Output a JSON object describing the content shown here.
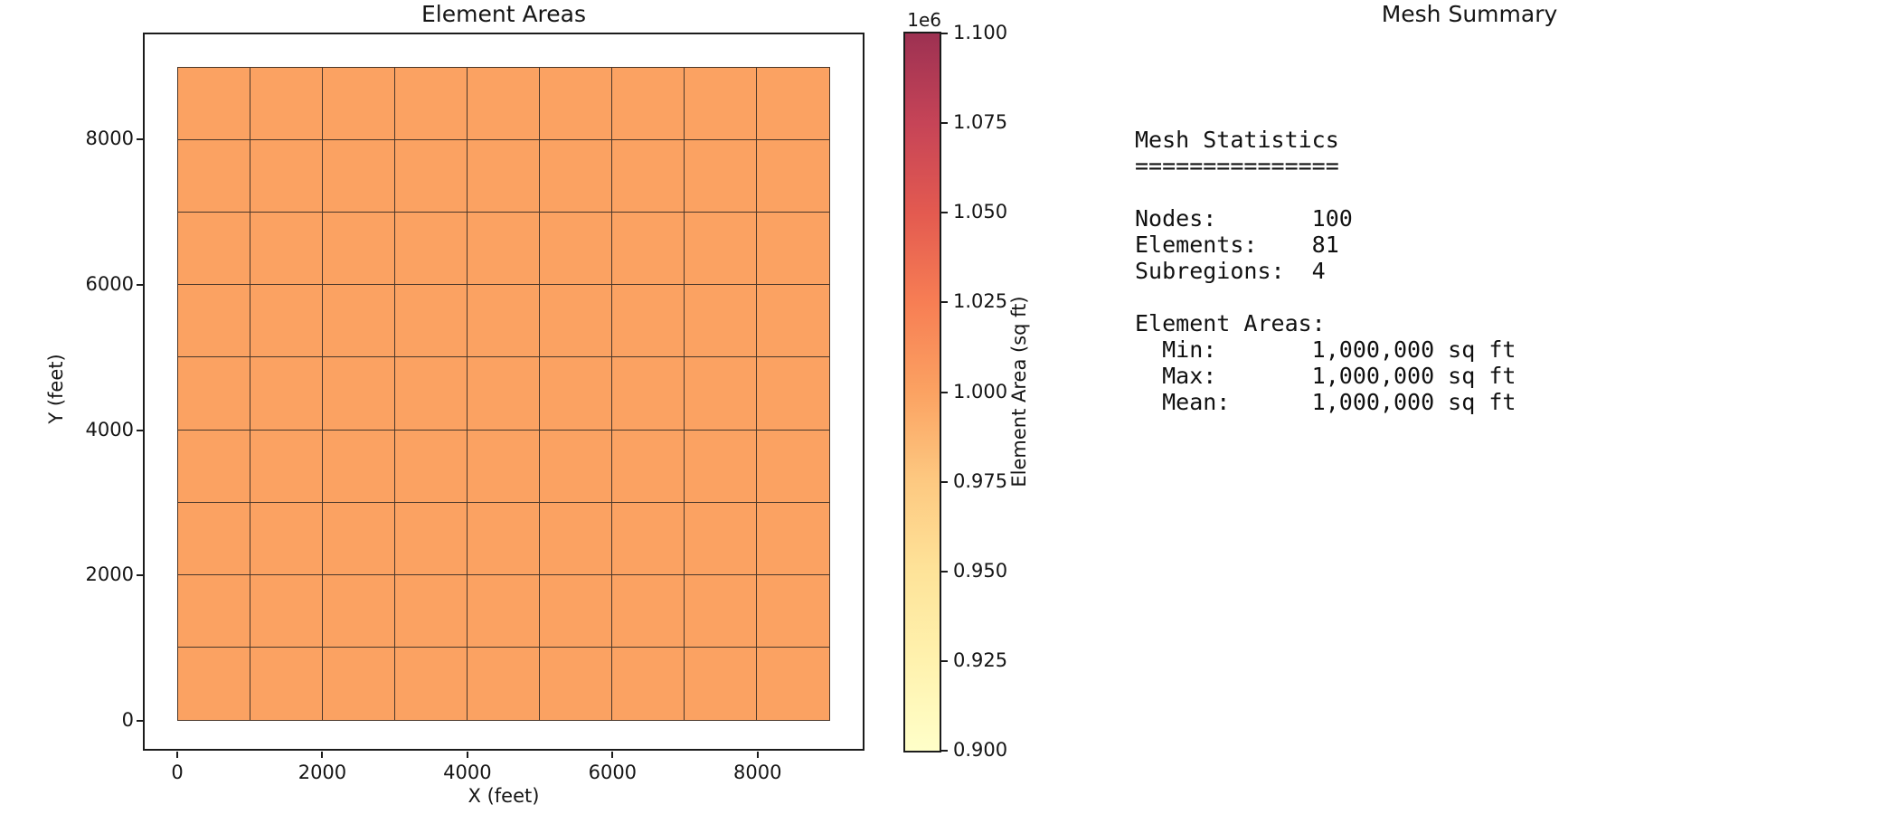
{
  "figure": {
    "background": "#ffffff",
    "text_color": "#151515"
  },
  "chart_data": {
    "type": "heatmap",
    "title": "Element Areas",
    "xlabel": "X (feet)",
    "ylabel": "Y (feet)",
    "x_ticks": [
      0,
      2000,
      4000,
      6000,
      8000
    ],
    "y_ticks": [
      0,
      2000,
      4000,
      6000,
      8000
    ],
    "x_range_ft": [
      0,
      9000
    ],
    "y_range_ft": [
      0,
      9000
    ],
    "grid": false,
    "mesh": {
      "rows": 9,
      "cols": 9,
      "cell_size_ft": 1000,
      "uniform_element_area_sqft": 1000000,
      "fill_color": "#fba262",
      "edge_color": "#4a372a"
    },
    "colorbar": {
      "label": "Element Area (sq ft)",
      "offset_text": "1e6",
      "tick_labels": [
        "1.100",
        "1.075",
        "1.050",
        "1.025",
        "1.000",
        "0.975",
        "0.950",
        "0.925",
        "0.900"
      ],
      "vmin_sqft": 900000,
      "vmax_sqft": 1100000,
      "gradient_bottom_to_top": [
        "#ffffc9",
        "#fff2ae",
        "#fee399",
        "#fdc981",
        "#fba262",
        "#f77e54",
        "#e35a50",
        "#c64457",
        "#9d3152"
      ]
    }
  },
  "summary_panel": {
    "title": "Mesh Summary",
    "stats_lines": [
      "Mesh Statistics",
      "===============",
      "",
      "Nodes:       100",
      "Elements:    81",
      "Subregions:  4",
      "",
      "Element Areas:",
      "  Min:       1,000,000 sq ft",
      "  Max:       1,000,000 sq ft",
      "  Mean:      1,000,000 sq ft"
    ]
  }
}
